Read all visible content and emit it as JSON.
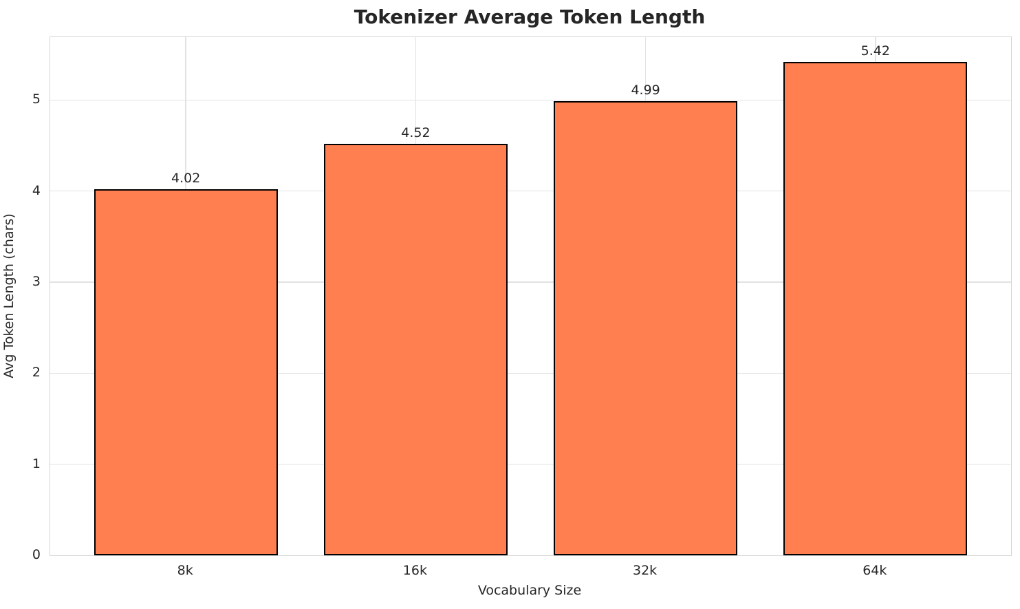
{
  "chart_data": {
    "type": "bar",
    "title": "Tokenizer Average Token Length",
    "xlabel": "Vocabulary Size",
    "ylabel": "Avg Token Length (chars)",
    "categories": [
      "8k",
      "16k",
      "32k",
      "64k"
    ],
    "values": [
      4.02,
      4.52,
      4.99,
      5.42
    ],
    "value_labels": [
      "4.02",
      "4.52",
      "4.99",
      "5.42"
    ],
    "yticks": [
      0,
      1,
      2,
      3,
      4,
      5
    ],
    "ylim": [
      0,
      5.69
    ],
    "xlim": [
      -0.59,
      3.59
    ],
    "bar_width": 0.8,
    "grid": true,
    "legend": "none",
    "colors": {
      "bar_fill": "#FF7F50",
      "bar_edge": "#000000",
      "grid": "#E2E2E2",
      "spine": "#D5D5D5",
      "text": "#262626",
      "background": "#FFFFFF"
    }
  }
}
